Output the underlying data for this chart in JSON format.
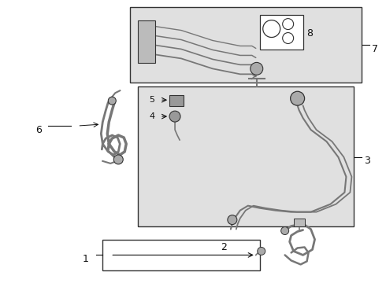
{
  "bg_color": "#ffffff",
  "part_color": "#777777",
  "box_bg": "#e0e0e0",
  "box_edge": "#333333",
  "label_color": "#111111",
  "fig_width": 4.9,
  "fig_height": 3.6,
  "dpi": 100
}
